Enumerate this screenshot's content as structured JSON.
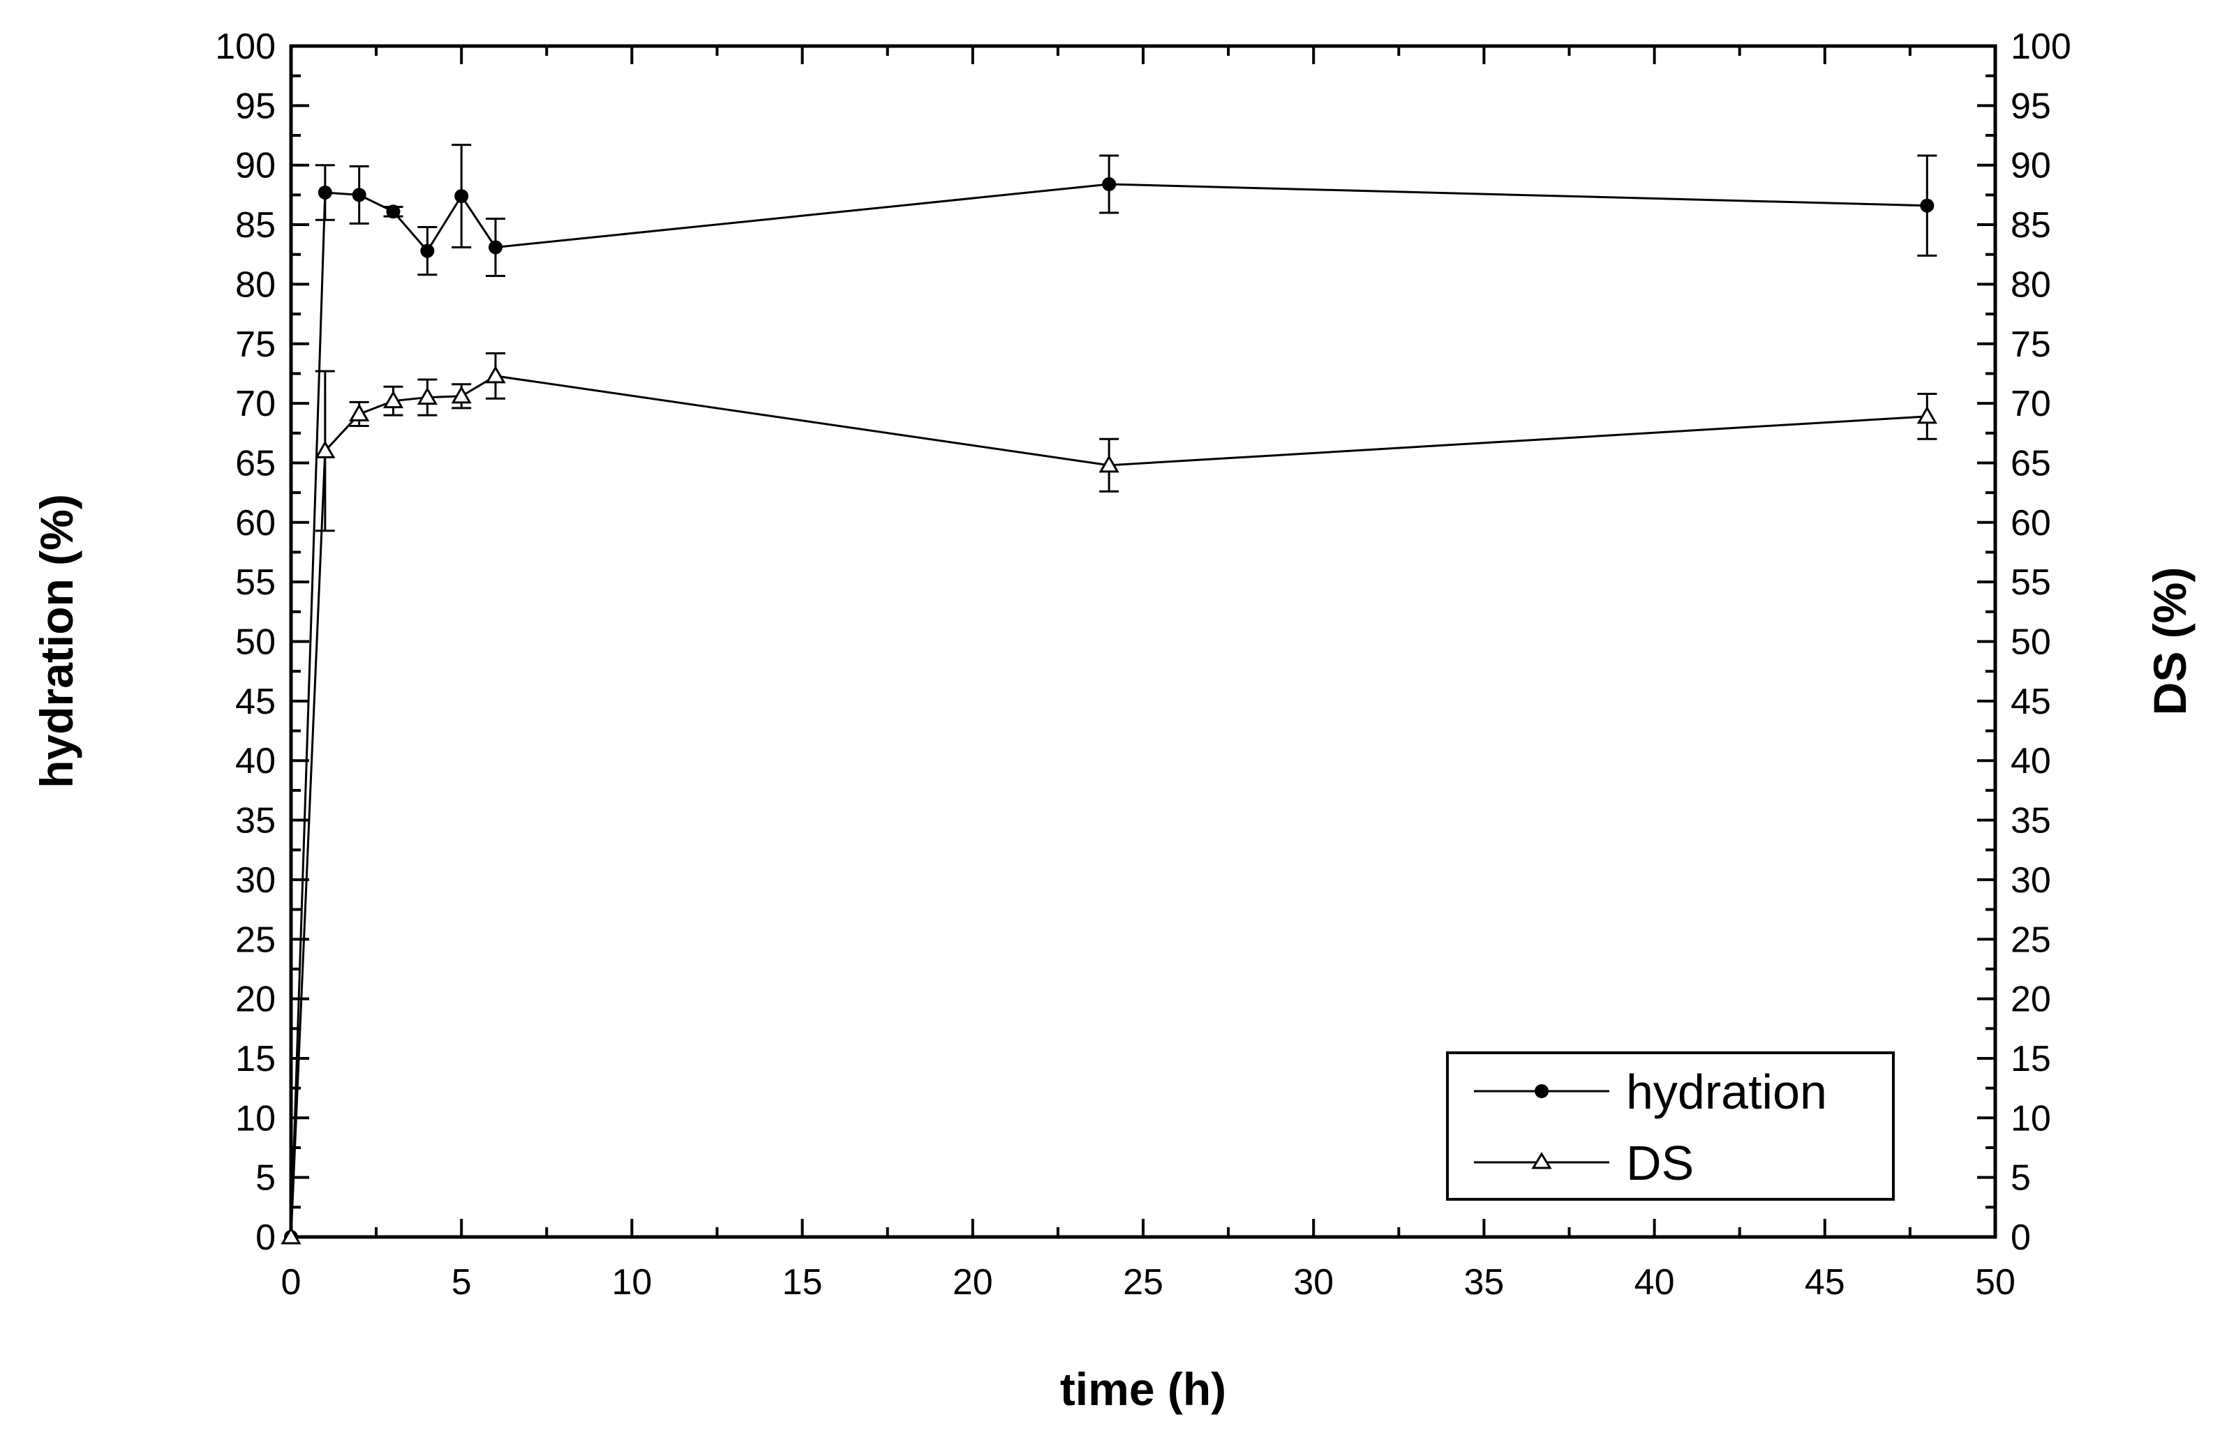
{
  "chart_data": {
    "type": "line",
    "xlabel": "time (h)",
    "ylabel": "hydration (%)",
    "y2label": "DS (%)",
    "xlim": [
      0,
      50
    ],
    "ylim": [
      0,
      100
    ],
    "y2lim": [
      0,
      100
    ],
    "x_ticks": [
      0,
      5,
      10,
      15,
      20,
      25,
      30,
      35,
      40,
      45,
      50
    ],
    "y_ticks": [
      0,
      5,
      10,
      15,
      20,
      25,
      30,
      35,
      40,
      45,
      50,
      55,
      60,
      65,
      70,
      75,
      80,
      85,
      90,
      95,
      100
    ],
    "x_tick_labels": [
      "0",
      "5",
      "10",
      "15",
      "20",
      "25",
      "30",
      "35",
      "40",
      "45",
      "50"
    ],
    "y_tick_labels": [
      "0",
      "5",
      "10",
      "15",
      "20",
      "25",
      "30",
      "35",
      "40",
      "45",
      "50",
      "55",
      "60",
      "65",
      "70",
      "75",
      "80",
      "85",
      "90",
      "95",
      "100"
    ],
    "grid": false,
    "legend_position": "bottom-right",
    "series": [
      {
        "name": "hydration",
        "marker": "filled-circle",
        "color": "#000000",
        "x": [
          0,
          1,
          2,
          3,
          4,
          5,
          6,
          24,
          48
        ],
        "y": [
          0,
          87.7,
          87.5,
          86.1,
          82.8,
          87.4,
          83.1,
          88.4,
          86.6
        ],
        "err": [
          0,
          2.3,
          2.4,
          0.4,
          2.0,
          4.3,
          2.4,
          2.4,
          4.2
        ]
      },
      {
        "name": "DS",
        "marker": "open-triangle",
        "color": "#000000",
        "x": [
          0,
          1,
          2,
          3,
          4,
          5,
          6,
          24,
          48
        ],
        "y": [
          0,
          66.0,
          69.1,
          70.2,
          70.5,
          70.6,
          72.3,
          64.8,
          68.9
        ],
        "err": [
          0,
          6.7,
          1.0,
          1.2,
          1.5,
          1.0,
          1.9,
          2.2,
          1.9
        ]
      }
    ]
  }
}
